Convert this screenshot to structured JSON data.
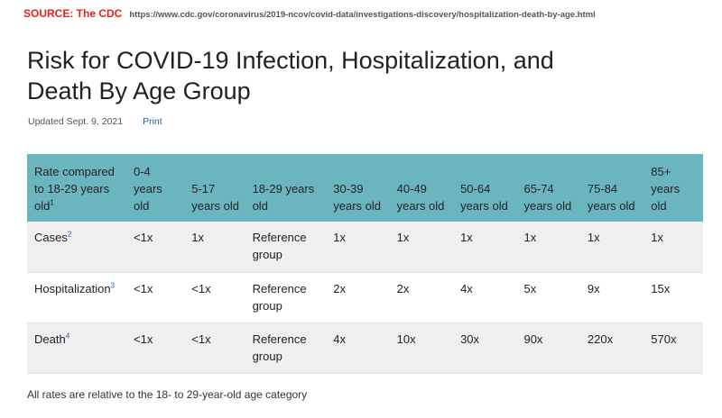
{
  "source": {
    "label": "SOURCE: The CDC",
    "url": "https://www.cdc.gov/coronavirus/2019-ncov/covid-data/investigations-discovery/hospitalization-death-by-age.html"
  },
  "title": "Risk for COVID-19 Infection, Hospitalization, and Death By Age Group",
  "meta": {
    "updated": "Updated Sept. 9, 2021",
    "print": "Print"
  },
  "table": {
    "corner_header": "Rate compared to 18-29 years old",
    "corner_sup": "1",
    "columns": [
      "0-4 years old",
      "5-17 years old",
      "18-29 years old",
      "30-39 years old",
      "40-49 years old",
      "50-64 years old",
      "65-74 years old",
      "75-84 years old",
      "85+ years old"
    ],
    "rows": [
      {
        "label": "Cases",
        "sup": "2",
        "cells": [
          "<1x",
          "1x",
          "Reference group",
          "1x",
          "1x",
          "1x",
          "1x",
          "1x",
          "1x"
        ]
      },
      {
        "label": "Hospitalization",
        "sup": "3",
        "cells": [
          "<1x",
          "<1x",
          "Reference group",
          "2x",
          "2x",
          "4x",
          "5x",
          "9x",
          "15x"
        ]
      },
      {
        "label": "Death",
        "sup": "4",
        "cells": [
          "<1x",
          "<1x",
          "Reference group",
          "4x",
          "10x",
          "30x",
          "90x",
          "220x",
          "570x"
        ]
      }
    ]
  },
  "footnote": "All rates are relative to the 18- to 29-year-old age category",
  "colors": {
    "source_red": "#e8211d",
    "header_teal": "#6bb5c1",
    "link_blue": "#1f5fa8",
    "row_stripe": "#efefef"
  }
}
